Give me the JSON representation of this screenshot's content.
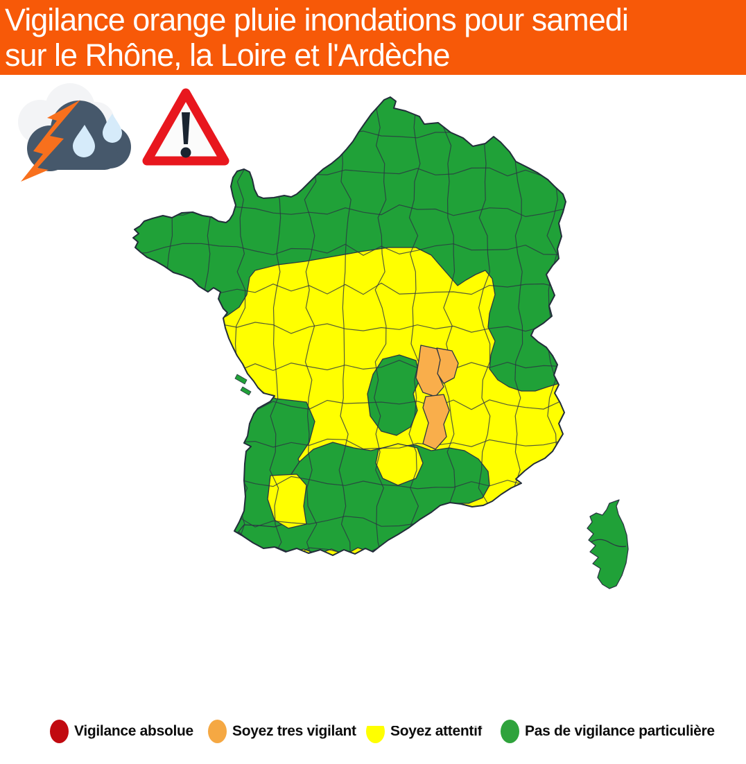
{
  "header": {
    "title_line1": "Vigilance orange pluie inondations pour samedi",
    "title_line2": "sur le Rhône, la Loire et l'Ardèche",
    "bg_color": "#F75908",
    "text_color": "#FFFFFF"
  },
  "icons": {
    "storm_icon": "storm-rain-cloud",
    "warning_icon": "warning-triangle",
    "cloud_color": "#46586B",
    "bolt_color": "#F8701D",
    "drop_color": "#D6EBFA",
    "triangle_red": "#E8171E",
    "exclamation_color": "#1A2430"
  },
  "map": {
    "country": "France",
    "vigilance_colors": {
      "green": "#20A138",
      "yellow": "#FFFF00",
      "orange": "#F9AE4B",
      "red": "#C10A10",
      "border": "#2a3542"
    },
    "orange_departments": [
      "Rhône",
      "Loire",
      "Ardèche"
    ]
  },
  "legend": {
    "items": [
      {
        "id": "red",
        "label": "Vigilance absolue",
        "color": "#C10A10"
      },
      {
        "id": "orange",
        "label": "Soyez tres vigilant",
        "color": "#F5A843"
      },
      {
        "id": "yellow",
        "label": "Soyez attentif",
        "color": "#FFFF00"
      },
      {
        "id": "green",
        "label": "Pas de vigilance particulière",
        "color": "#2FA33C"
      }
    ]
  }
}
